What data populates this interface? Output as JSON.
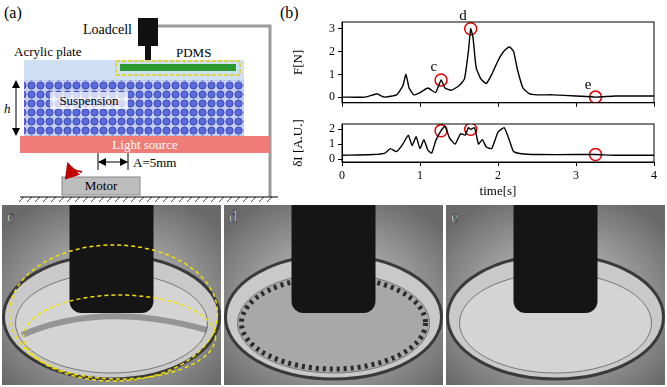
{
  "labels": {
    "a": "(a)",
    "b": "(b)"
  },
  "diagram": {
    "loadcell": "Loadcell",
    "acrylic_plate": "Acrylic plate",
    "pdms": "PDMS",
    "suspension": "Suspension",
    "light_source": "Light source",
    "motor": "Motor",
    "height": "h",
    "amplitude": "A=5mm"
  },
  "chart_data": [
    {
      "type": "line",
      "x": [
        0,
        0.3,
        0.45,
        0.5,
        0.55,
        0.7,
        0.78,
        0.82,
        0.86,
        0.92,
        1.0,
        1.1,
        1.2,
        1.27,
        1.32,
        1.4,
        1.5,
        1.57,
        1.62,
        1.65,
        1.68,
        1.72,
        1.78,
        1.85,
        1.92,
        2.0,
        2.05,
        2.1,
        2.15,
        2.2,
        2.25,
        2.32,
        2.4,
        2.5,
        2.7,
        3.0,
        3.25,
        3.5,
        4.0
      ],
      "series": [
        {
          "color": "#000000",
          "line_style": "solid",
          "values": [
            0,
            0,
            0.15,
            0.05,
            0,
            0.1,
            0.5,
            1.0,
            0.4,
            0.1,
            0.2,
            0.4,
            0.2,
            0.75,
            0.4,
            0.3,
            0.5,
            0.8,
            2.0,
            3.0,
            2.6,
            1.3,
            0.8,
            0.6,
            1.0,
            1.6,
            1.9,
            2.1,
            2.2,
            2.0,
            1.2,
            0.4,
            0.15,
            0.1,
            0.1,
            0.05,
            0.0,
            0.05,
            0.05
          ]
        }
      ],
      "points": {
        "x": [
          1.27,
          1.65,
          3.25
        ],
        "values": [
          0.75,
          3.0,
          0.0
        ],
        "labels": [
          "c",
          "d",
          "e"
        ],
        "color": "#e00000",
        "marker": "circle"
      },
      "xlim": [
        0,
        4
      ],
      "xticks": [
        0,
        1,
        2,
        3,
        4
      ],
      "ylim": [
        -0.25,
        3.3
      ],
      "yticks": [
        0,
        1,
        2,
        3
      ],
      "y_label": "F[N]",
      "grid": false,
      "tick_labels": "y"
    },
    {
      "type": "line",
      "x": [
        0,
        0.4,
        0.55,
        0.62,
        0.7,
        0.78,
        0.85,
        0.9,
        0.95,
        1.0,
        1.05,
        1.1,
        1.15,
        1.2,
        1.27,
        1.32,
        1.38,
        1.45,
        1.52,
        1.58,
        1.62,
        1.65,
        1.7,
        1.75,
        1.8,
        1.85,
        1.92,
        2.0,
        2.08,
        2.15,
        2.2,
        2.3,
        2.5,
        3.0,
        3.25,
        3.5,
        4.0
      ],
      "series": [
        {
          "color": "#000000",
          "line_style": "solid",
          "values": [
            0.25,
            0.3,
            0.4,
            0.7,
            0.5,
            1.0,
            1.6,
            0.9,
            1.5,
            0.7,
            1.3,
            0.6,
            0.4,
            1.2,
            1.9,
            2.2,
            1.4,
            1.0,
            1.7,
            1.6,
            2.1,
            2.0,
            2.1,
            1.0,
            1.3,
            0.8,
            0.7,
            1.8,
            2.1,
            1.2,
            0.5,
            0.35,
            0.3,
            0.3,
            0.3,
            0.25,
            0.25
          ]
        }
      ],
      "points": {
        "x": [
          1.27,
          1.65,
          3.25
        ],
        "values": [
          1.9,
          2.0,
          0.3
        ],
        "color": "#e00000",
        "marker": "circle"
      },
      "xlim": [
        0,
        4
      ],
      "xticks": [
        0,
        1,
        2,
        3,
        4
      ],
      "ylim": [
        -0.2,
        2.35
      ],
      "yticks": [
        0,
        1,
        2
      ],
      "x_label": "time[s]",
      "y_label": "δI [A.U.]",
      "grid": false
    }
  ],
  "photos": [
    {
      "label": "c"
    },
    {
      "label": "d"
    },
    {
      "label": "e"
    }
  ]
}
